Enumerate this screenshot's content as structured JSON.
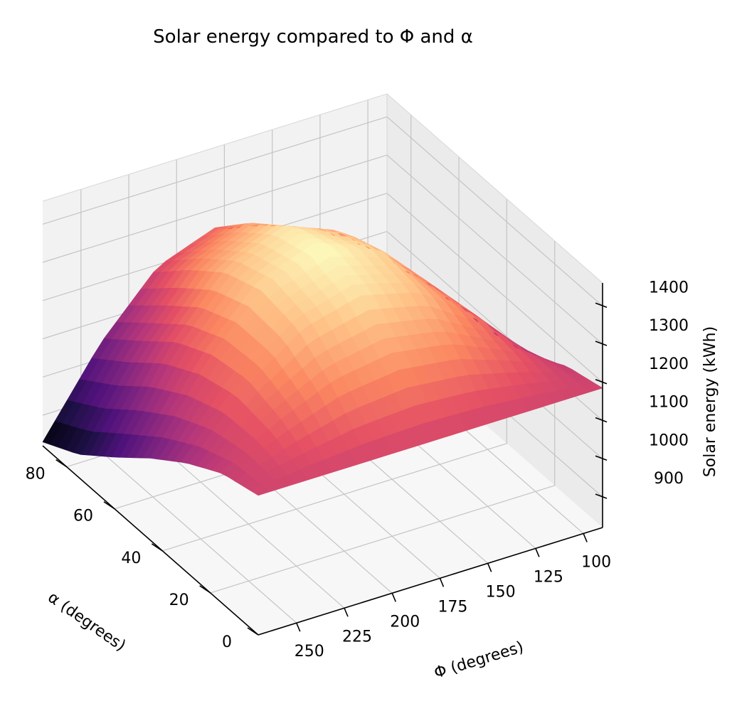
{
  "chart_data": {
    "type": "surface3d",
    "title": "Solar energy compared to Φ and α",
    "colormap": "magma",
    "axes": {
      "x": {
        "label": "α (degrees)",
        "range": [
          0,
          90
        ],
        "ticks": [
          0,
          20,
          40,
          60,
          80
        ],
        "tick_labels": [
          "0",
          "20",
          "40",
          "60",
          "80"
        ]
      },
      "y": {
        "label": "Φ (degrees)",
        "range": [
          90,
          270
        ],
        "ticks": [
          100,
          125,
          150,
          175,
          200,
          225,
          250
        ],
        "tick_labels": [
          "100",
          "125",
          "150",
          "175",
          "200",
          "225",
          "250"
        ]
      },
      "z": {
        "label": "Solar energy (kWh)",
        "range": [
          820,
          1460
        ],
        "ticks": [
          900,
          1000,
          1100,
          1200,
          1300,
          1400
        ],
        "tick_labels": [
          "900",
          "1000",
          "1100",
          "1200",
          "1300",
          "1400"
        ]
      }
    },
    "grid": true,
    "surface": {
      "alpha_values": [
        0,
        15,
        30,
        45,
        60,
        75,
        90
      ],
      "phi_values": [
        90,
        120,
        150,
        180,
        210,
        240,
        270
      ],
      "energy_kwh": [
        [
          1185,
          1185,
          1185,
          1185,
          1185,
          1185,
          1185
        ],
        [
          1160,
          1240,
          1300,
          1322,
          1300,
          1240,
          1160
        ],
        [
          1105,
          1265,
          1375,
          1415,
          1375,
          1265,
          1105
        ],
        [
          1035,
          1245,
          1395,
          1445,
          1395,
          1245,
          1035
        ],
        [
          955,
          1195,
          1360,
          1420,
          1360,
          1195,
          955
        ],
        [
          880,
          1115,
          1285,
          1345,
          1285,
          1115,
          880
        ],
        [
          830,
          1040,
          1195,
          1250,
          1195,
          1040,
          830
        ]
      ]
    }
  }
}
